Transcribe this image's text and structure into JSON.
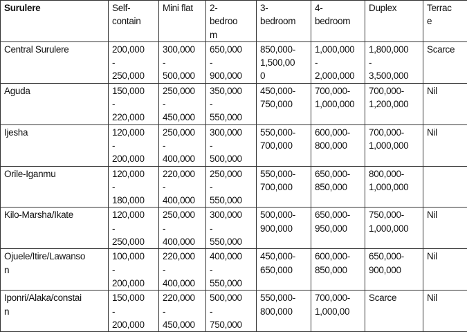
{
  "table": {
    "headers": [
      "Surulere",
      "Self-\ncontain",
      "Mini flat",
      "2-\nbedroo\nm",
      "3-\nbedroom",
      "4-\nbedroom",
      "Duplex",
      "Terrac\ne"
    ],
    "rows": [
      [
        "Central Surulere",
        "200,000\n-\n250,000",
        "300,000\n-\n500,000",
        "650,000\n-\n900,000",
        "850,000-\n1,500,00\n0",
        "1,000,000\n-\n2,000,000",
        "1,800,000\n-\n3,500,000",
        "Scarce"
      ],
      [
        "Aguda",
        "150,000\n-\n220,000",
        "250,000\n-\n450,000",
        "350,000\n-\n550,000",
        "450,000-\n750,000",
        "700,000-\n1,000,000",
        "700,000-\n1,200,000",
        "Nil"
      ],
      [
        "Ijesha",
        "120,000\n-\n200,000",
        "250,000\n-\n400,000",
        "300,000\n-\n500,000",
        "550,000-\n700,000",
        "600,000-\n800,000",
        "700,000-\n1,000,000",
        "Nil"
      ],
      [
        "Orile-Iganmu",
        "120,000\n-\n180,000",
        "220,000\n-\n400,000",
        "250,000\n-\n550,000",
        "550,000-\n700,000",
        "650,000-\n850,000",
        "800,000-\n1,000,000",
        ""
      ],
      [
        "Kilo-Marsha/Ikate",
        "120,000\n-\n250,000",
        "250,000\n-\n400,000",
        "300,000\n-\n550,000",
        "500,000-\n900,000",
        "650,000-\n950,000",
        "750,000-\n1,000,000",
        "Nil"
      ],
      [
        "Ojuele/Itire/Lawanso\nn",
        "100,000\n-\n200,000",
        "220,000\n-\n400,000",
        "400,000\n-\n550,000",
        "450,000-\n650,000",
        "600,000-\n850,000",
        "650,000-\n900,000",
        "Nil"
      ],
      [
        "Iponri/Alaka/constai\nn",
        "150,000\n-\n200,000",
        "220,000\n-\n450,000",
        "500,000\n-\n750,000",
        "550,000-\n800,000",
        "700,000-\n1,000,00",
        "Scarce",
        "Nil"
      ]
    ]
  }
}
